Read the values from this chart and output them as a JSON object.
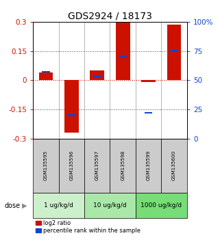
{
  "title": "GDS2924 / 18173",
  "samples": [
    "GSM135595",
    "GSM135596",
    "GSM135597",
    "GSM135598",
    "GSM135599",
    "GSM135600"
  ],
  "log2_ratio": [
    0.04,
    -0.27,
    0.05,
    0.295,
    -0.01,
    0.285
  ],
  "percentile_rank": [
    57,
    20,
    53,
    70,
    22,
    75
  ],
  "dose_groups": [
    {
      "label": "1 ug/kg/d",
      "color": "#ccf0cc"
    },
    {
      "label": "10 ug/kg/d",
      "color": "#aae8aa"
    },
    {
      "label": "1000 ug/kg/d",
      "color": "#77dd77"
    }
  ],
  "ylim": [
    -0.3,
    0.3
  ],
  "yticks_left": [
    -0.3,
    -0.15,
    0.0,
    0.15,
    0.3
  ],
  "yticks_right": [
    0,
    25,
    50,
    75,
    100
  ],
  "bar_color_red": "#cc1100",
  "bar_color_blue": "#1144cc",
  "hline_color": "#cc1100",
  "dotted_color": "#444444",
  "sample_bg_color": "#cccccc",
  "title_fontsize": 10,
  "bar_width": 0.55,
  "blue_square_size": 0.008
}
